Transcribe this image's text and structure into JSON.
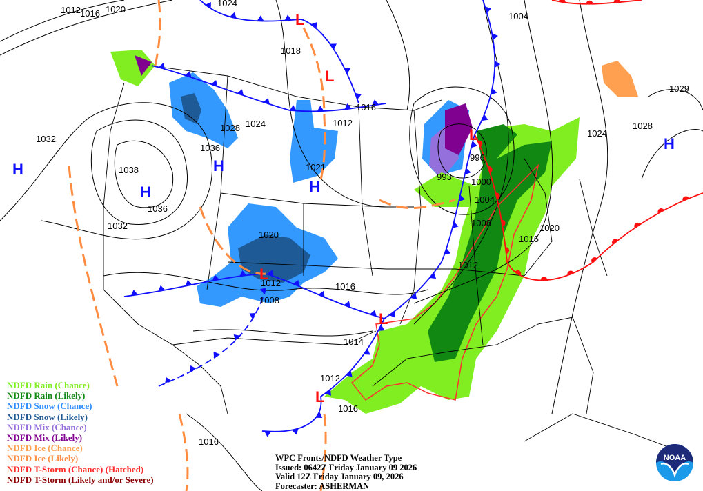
{
  "map": {
    "isobar_labels": [
      "1012",
      "1016",
      "1020",
      "1024",
      "1004",
      "1018",
      "1016",
      "1024",
      "1012",
      "1028",
      "1036",
      "1032",
      "1038",
      "1036",
      "1032",
      "1021",
      "1020",
      "1012",
      "1008",
      "1016",
      "1014",
      "1012",
      "1016",
      "1016",
      "996",
      "993",
      "1000",
      "1004",
      "1008",
      "1012",
      "1016",
      "1020",
      "1024",
      "1028",
      "1029"
    ],
    "high_label": "H",
    "low_label": "L",
    "colors": {
      "cold_front": "#1010ff",
      "warm_front": "#ff1010",
      "trough": "#ff8c40",
      "rain_chance": "#80ee20",
      "rain_likely": "#118811",
      "snow_chance": "#3399ff",
      "snow_likely": "#1e5a96",
      "mix_chance": "#9370db",
      "mix_likely": "#800090",
      "ice_chance": "#ffa050",
      "tstorm_chance": "#ff3030"
    }
  },
  "legend": [
    {
      "label": "NDFD Rain (Chance)",
      "color": "#80ee20"
    },
    {
      "label": "NDFD Rain (Likely)",
      "color": "#118811"
    },
    {
      "label": "NDFD Snow (Chance)",
      "color": "#2f8fff"
    },
    {
      "label": "NDFD Snow (Likely)",
      "color": "#1e5a96"
    },
    {
      "label": "NDFD Mix (Chance)",
      "color": "#9370db"
    },
    {
      "label": "NDFD Mix (Likely)",
      "color": "#800090"
    },
    {
      "label": "NDFD Ice (Chance)",
      "color": "#ffa050"
    },
    {
      "label": "NDFD Ice (Likely)",
      "color": "#ff8c40"
    },
    {
      "label": "NDFD T-Storm (Chance) (Hatched)",
      "color": "#ff2a2a"
    },
    {
      "label": "NDFD T-Storm (Likely and/or Severe)",
      "color": "#8b0000"
    }
  ],
  "info": {
    "title": "WPC Fronts/NDFD Weather Type",
    "issued": "Issued: 0642Z Friday January 09 2026",
    "valid": "Valid 12Z Friday January 09, 2026",
    "forecaster": "Forecaster: ASHERMAN"
  },
  "logo": {
    "text": "NOAA"
  }
}
